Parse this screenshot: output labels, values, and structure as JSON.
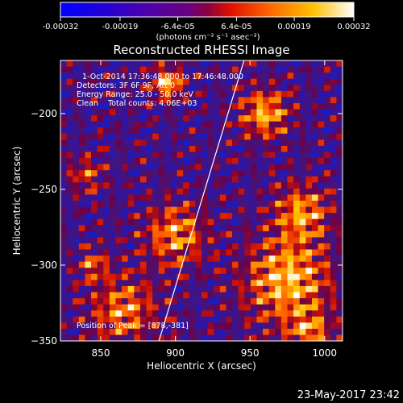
{
  "chart_data": {
    "type": "heatmap",
    "title": "Reconstructed RHESSI Image",
    "xlabel": "Heliocentric X (arcsec)",
    "ylabel": "Heliocentric Y (arcsec)",
    "xlim": [
      823,
      1012
    ],
    "ylim": [
      -350,
      -165
    ],
    "xticks": [
      850,
      900,
      950,
      1000
    ],
    "yticks": [
      -200,
      -250,
      -300,
      -350
    ],
    "colorbar": {
      "ticks": [
        "-0.00032",
        "-0.00019",
        "-6.4e-05",
        "6.4e-05",
        "0.00019",
        "0.00032"
      ],
      "tick_values": [
        -0.00032,
        -0.00019,
        -6.4e-05,
        6.4e-05,
        0.00019,
        0.00032
      ],
      "range": [
        -0.00032,
        0.00032
      ],
      "units_label": "(photons cm⁻² s⁻¹ asec⁻²)"
    },
    "annotations": {
      "time": "1-Oct-2014 17:36:48.000 to 17:46:48.000",
      "detectors": "Detectors: 3F 6F 9F, Att 0",
      "energy": "Energy Range: 25.0 - 50.0 keV",
      "method": "Clean    Total counts: 4.06E+03",
      "peak": "Position of Peak = [878,-381]"
    },
    "limb_line": {
      "x": [
        889,
        946
      ],
      "y": [
        -350,
        -165
      ]
    },
    "grid": false,
    "colors": {
      "colorbar": [
        "#0000ff",
        "#2a00d0",
        "#5000a8",
        "#700078",
        "#ff2a00",
        "#ff8c00",
        "#ffd400",
        "#ffffff"
      ],
      "limb": "#ffffff"
    }
  },
  "footer": {
    "timestamp": "23-May-2017 23:42"
  }
}
